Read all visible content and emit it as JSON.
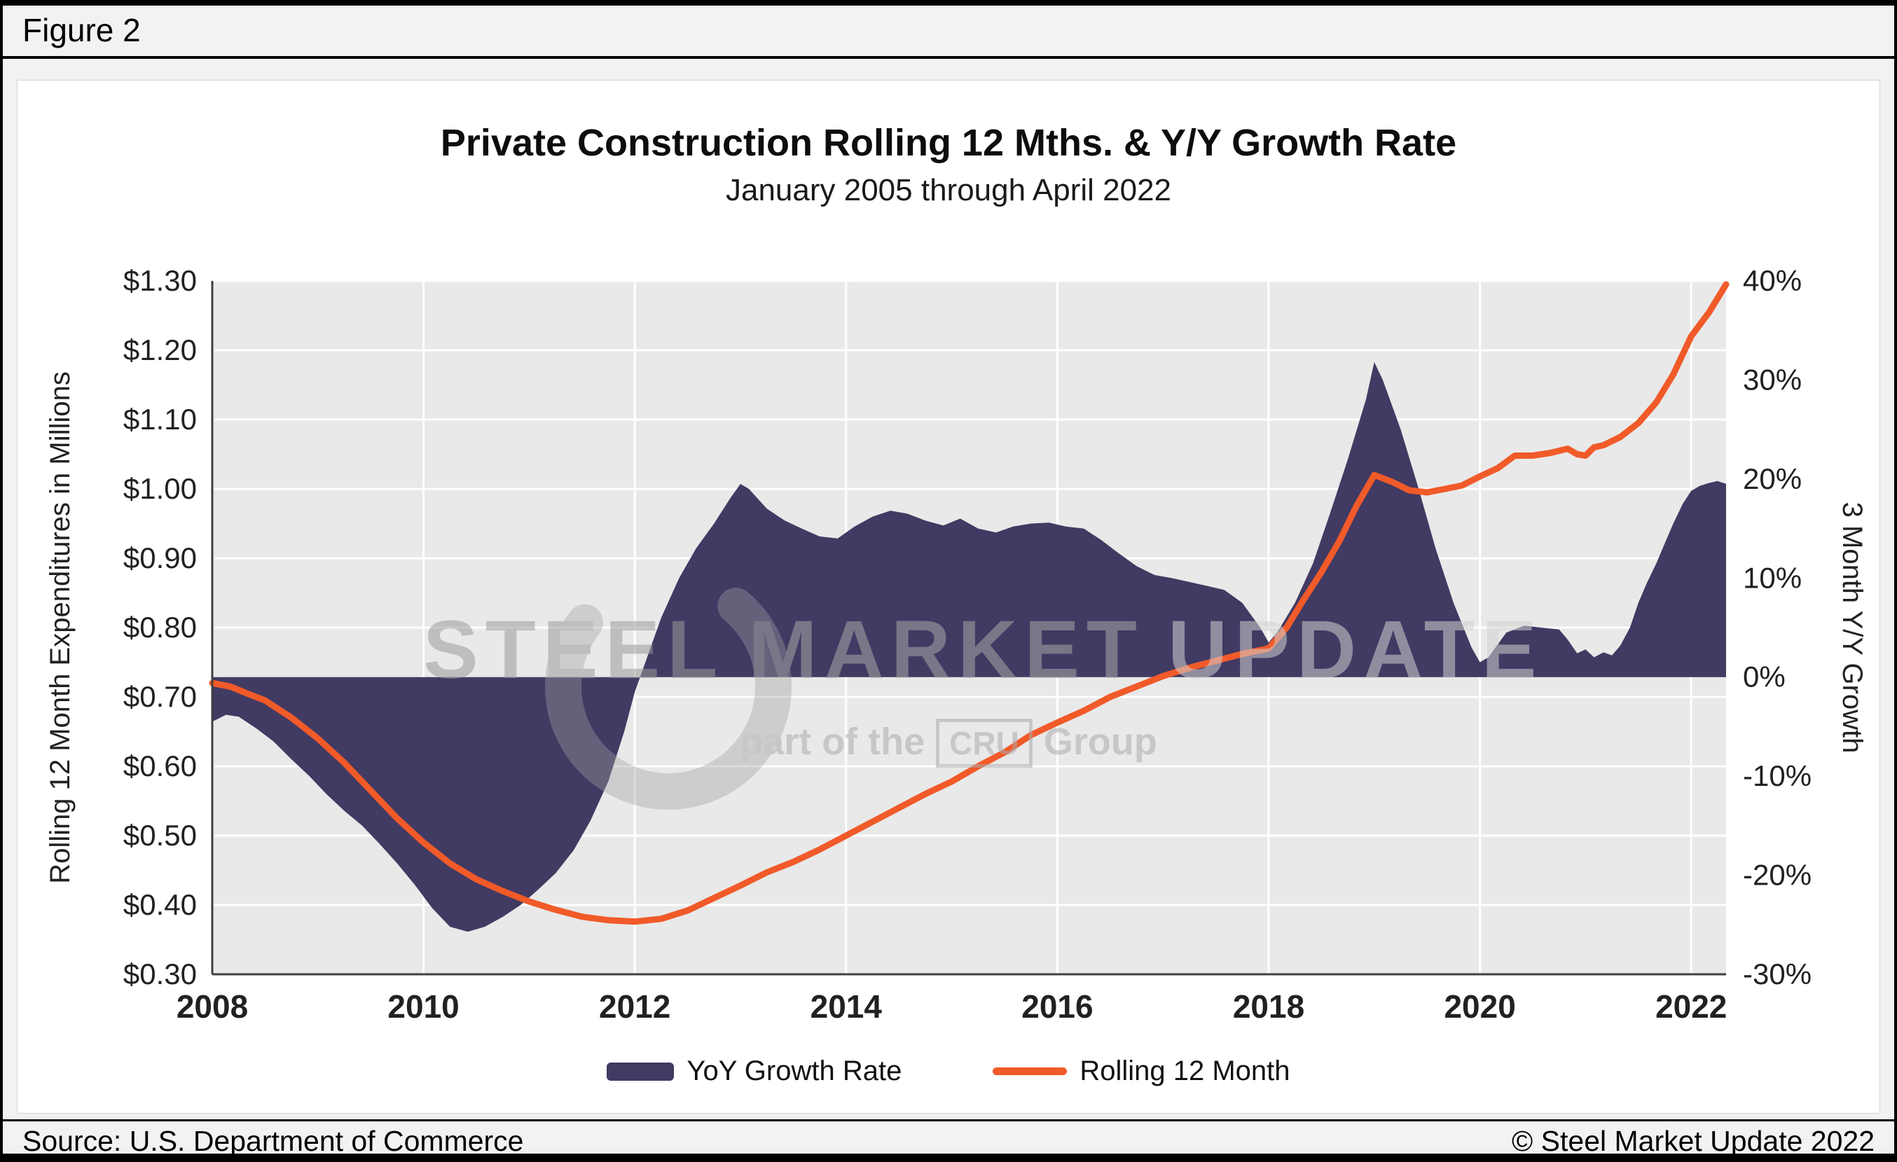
{
  "figure_label": "Figure 2",
  "title": "Private Construction Rolling 12 Mths. & Y/Y Growth Rate",
  "subtitle": "January 2005 through April 2022",
  "source": "Source: U.S. Department of Commerce",
  "copyright": "© Steel Market Update 2022",
  "watermark": {
    "word1": "STEEL",
    "word2": "MARKET",
    "word3": "UPDATE",
    "line2_prefix": "part of the",
    "cru": "CRU",
    "line2_suffix": "Group"
  },
  "colors": {
    "area": "#413a63",
    "line": "#f15a29",
    "plot_bg": "#e9e9e9",
    "grid": "#ffffff",
    "axis": "#404040"
  },
  "legend": [
    {
      "label": "YoY Growth Rate"
    },
    {
      "label": "Rolling 12 Month"
    }
  ],
  "chart_data": {
    "type": "combo",
    "title": "Private Construction Rolling 12 Mths. & Y/Y Growth Rate",
    "subtitle": "January 2005 through April 2022",
    "x_range": [
      2008,
      2022.33
    ],
    "x_axis": {
      "ticks": [
        2008,
        2010,
        2012,
        2014,
        2016,
        2018,
        2020,
        2022
      ]
    },
    "y_left": {
      "label": "Rolling 12 Month Expenditures in Millions",
      "range": [
        0.3,
        1.3
      ],
      "ticks": [
        "$1.30",
        "$1.20",
        "$1.10",
        "$1.00",
        "$0.90",
        "$0.80",
        "$0.70",
        "$0.60",
        "$0.50",
        "$0.40",
        "$0.30"
      ],
      "values": [
        1.3,
        1.2,
        1.1,
        1.0,
        0.9,
        0.8,
        0.7,
        0.6,
        0.5,
        0.4,
        0.3
      ]
    },
    "y_right": {
      "label": "3 Month Y/Y Growth",
      "range": [
        -30,
        40
      ],
      "ticks": [
        "40%",
        "30%",
        "20%",
        "10%",
        "0%",
        "-10%",
        "-20%",
        "-30%"
      ],
      "values": [
        40,
        30,
        20,
        10,
        0,
        -10,
        -20,
        -30
      ]
    },
    "series": [
      {
        "name": "YoY Growth Rate",
        "type": "area",
        "axis": "right",
        "baseline": 0,
        "color": "#413a63",
        "points": [
          [
            2008.0,
            -4.5
          ],
          [
            2008.13,
            -3.8
          ],
          [
            2008.25,
            -4.0
          ],
          [
            2008.42,
            -5.2
          ],
          [
            2008.58,
            -6.5
          ],
          [
            2008.75,
            -8.3
          ],
          [
            2008.92,
            -10.0
          ],
          [
            2009.08,
            -11.8
          ],
          [
            2009.25,
            -13.5
          ],
          [
            2009.42,
            -15.0
          ],
          [
            2009.58,
            -16.8
          ],
          [
            2009.75,
            -18.8
          ],
          [
            2009.92,
            -21.0
          ],
          [
            2010.08,
            -23.3
          ],
          [
            2010.25,
            -25.2
          ],
          [
            2010.42,
            -25.7
          ],
          [
            2010.58,
            -25.2
          ],
          [
            2010.75,
            -24.2
          ],
          [
            2010.92,
            -23.0
          ],
          [
            2011.08,
            -21.5
          ],
          [
            2011.25,
            -19.8
          ],
          [
            2011.42,
            -17.5
          ],
          [
            2011.58,
            -14.5
          ],
          [
            2011.75,
            -10.5
          ],
          [
            2011.9,
            -5.5
          ],
          [
            2012.0,
            -1.5
          ],
          [
            2012.1,
            1.5
          ],
          [
            2012.25,
            6.0
          ],
          [
            2012.42,
            10.0
          ],
          [
            2012.58,
            13.0
          ],
          [
            2012.75,
            15.5
          ],
          [
            2012.9,
            18.0
          ],
          [
            2013.0,
            19.5
          ],
          [
            2013.08,
            19.0
          ],
          [
            2013.25,
            17.0
          ],
          [
            2013.42,
            15.8
          ],
          [
            2013.58,
            15.0
          ],
          [
            2013.75,
            14.2
          ],
          [
            2013.92,
            14.0
          ],
          [
            2014.08,
            15.2
          ],
          [
            2014.25,
            16.2
          ],
          [
            2014.42,
            16.8
          ],
          [
            2014.58,
            16.5
          ],
          [
            2014.75,
            15.8
          ],
          [
            2014.92,
            15.3
          ],
          [
            2015.08,
            16.0
          ],
          [
            2015.25,
            15.0
          ],
          [
            2015.42,
            14.6
          ],
          [
            2015.58,
            15.2
          ],
          [
            2015.75,
            15.5
          ],
          [
            2015.92,
            15.6
          ],
          [
            2016.08,
            15.2
          ],
          [
            2016.25,
            15.0
          ],
          [
            2016.42,
            13.8
          ],
          [
            2016.58,
            12.5
          ],
          [
            2016.75,
            11.2
          ],
          [
            2016.92,
            10.3
          ],
          [
            2017.08,
            10.0
          ],
          [
            2017.25,
            9.6
          ],
          [
            2017.42,
            9.2
          ],
          [
            2017.58,
            8.8
          ],
          [
            2017.75,
            7.5
          ],
          [
            2017.92,
            5.0
          ],
          [
            2018.0,
            3.5
          ],
          [
            2018.08,
            4.5
          ],
          [
            2018.25,
            7.5
          ],
          [
            2018.42,
            11.5
          ],
          [
            2018.58,
            16.5
          ],
          [
            2018.75,
            22.0
          ],
          [
            2018.92,
            28.0
          ],
          [
            2019.0,
            31.8
          ],
          [
            2019.08,
            30.0
          ],
          [
            2019.25,
            25.0
          ],
          [
            2019.42,
            19.0
          ],
          [
            2019.58,
            13.0
          ],
          [
            2019.75,
            7.5
          ],
          [
            2019.92,
            3.0
          ],
          [
            2020.0,
            1.5
          ],
          [
            2020.08,
            2.0
          ],
          [
            2020.25,
            4.5
          ],
          [
            2020.42,
            5.2
          ],
          [
            2020.58,
            5.0
          ],
          [
            2020.75,
            4.8
          ],
          [
            2020.83,
            3.8
          ],
          [
            2020.92,
            2.4
          ],
          [
            2021.0,
            2.8
          ],
          [
            2021.08,
            2.0
          ],
          [
            2021.17,
            2.5
          ],
          [
            2021.25,
            2.2
          ],
          [
            2021.33,
            3.2
          ],
          [
            2021.42,
            5.0
          ],
          [
            2021.5,
            7.5
          ],
          [
            2021.58,
            9.5
          ],
          [
            2021.67,
            11.5
          ],
          [
            2021.75,
            13.5
          ],
          [
            2021.83,
            15.5
          ],
          [
            2021.92,
            17.5
          ],
          [
            2022.0,
            18.8
          ],
          [
            2022.08,
            19.3
          ],
          [
            2022.17,
            19.6
          ],
          [
            2022.25,
            19.8
          ],
          [
            2022.33,
            19.5
          ]
        ]
      },
      {
        "name": "Rolling 12 Month",
        "type": "line",
        "axis": "left",
        "color": "#f15a29",
        "points": [
          [
            2008.0,
            0.72
          ],
          [
            2008.17,
            0.715
          ],
          [
            2008.33,
            0.705
          ],
          [
            2008.5,
            0.695
          ],
          [
            2008.75,
            0.67
          ],
          [
            2009.0,
            0.64
          ],
          [
            2009.25,
            0.605
          ],
          [
            2009.5,
            0.565
          ],
          [
            2009.75,
            0.525
          ],
          [
            2010.0,
            0.49
          ],
          [
            2010.25,
            0.46
          ],
          [
            2010.5,
            0.437
          ],
          [
            2010.75,
            0.42
          ],
          [
            2011.0,
            0.405
          ],
          [
            2011.25,
            0.393
          ],
          [
            2011.5,
            0.383
          ],
          [
            2011.75,
            0.378
          ],
          [
            2012.0,
            0.376
          ],
          [
            2012.25,
            0.38
          ],
          [
            2012.5,
            0.392
          ],
          [
            2012.75,
            0.41
          ],
          [
            2013.0,
            0.428
          ],
          [
            2013.25,
            0.447
          ],
          [
            2013.5,
            0.462
          ],
          [
            2013.75,
            0.48
          ],
          [
            2014.0,
            0.5
          ],
          [
            2014.25,
            0.52
          ],
          [
            2014.5,
            0.54
          ],
          [
            2014.75,
            0.56
          ],
          [
            2015.0,
            0.578
          ],
          [
            2015.25,
            0.6
          ],
          [
            2015.5,
            0.62
          ],
          [
            2015.75,
            0.645
          ],
          [
            2016.0,
            0.663
          ],
          [
            2016.25,
            0.68
          ],
          [
            2016.5,
            0.7
          ],
          [
            2016.75,
            0.715
          ],
          [
            2017.0,
            0.73
          ],
          [
            2017.25,
            0.742
          ],
          [
            2017.5,
            0.752
          ],
          [
            2017.75,
            0.762
          ],
          [
            2018.0,
            0.77
          ],
          [
            2018.17,
            0.8
          ],
          [
            2018.33,
            0.84
          ],
          [
            2018.5,
            0.88
          ],
          [
            2018.67,
            0.925
          ],
          [
            2018.83,
            0.975
          ],
          [
            2019.0,
            1.02
          ],
          [
            2019.17,
            1.01
          ],
          [
            2019.33,
            0.998
          ],
          [
            2019.5,
            0.995
          ],
          [
            2019.67,
            1.0
          ],
          [
            2019.83,
            1.005
          ],
          [
            2020.0,
            1.018
          ],
          [
            2020.17,
            1.03
          ],
          [
            2020.33,
            1.048
          ],
          [
            2020.5,
            1.048
          ],
          [
            2020.67,
            1.052
          ],
          [
            2020.83,
            1.058
          ],
          [
            2020.92,
            1.05
          ],
          [
            2021.0,
            1.048
          ],
          [
            2021.08,
            1.06
          ],
          [
            2021.17,
            1.063
          ],
          [
            2021.33,
            1.075
          ],
          [
            2021.5,
            1.095
          ],
          [
            2021.67,
            1.125
          ],
          [
            2021.83,
            1.165
          ],
          [
            2022.0,
            1.22
          ],
          [
            2022.17,
            1.255
          ],
          [
            2022.33,
            1.295
          ]
        ]
      }
    ]
  }
}
